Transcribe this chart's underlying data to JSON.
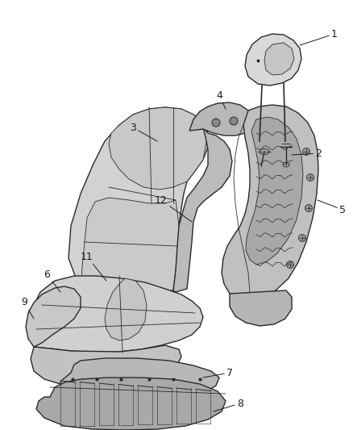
{
  "background_color": "#ffffff",
  "line_color": "#2a2a2a",
  "label_color": "#1a1a1a",
  "figsize": [
    4.38,
    5.33
  ],
  "dpi": 100,
  "label_fontsize": 9,
  "gray_fill": "#c8c8c8",
  "light_gray": "#e0e0e0",
  "mid_gray": "#b0b0b0",
  "dark_gray": "#888888"
}
